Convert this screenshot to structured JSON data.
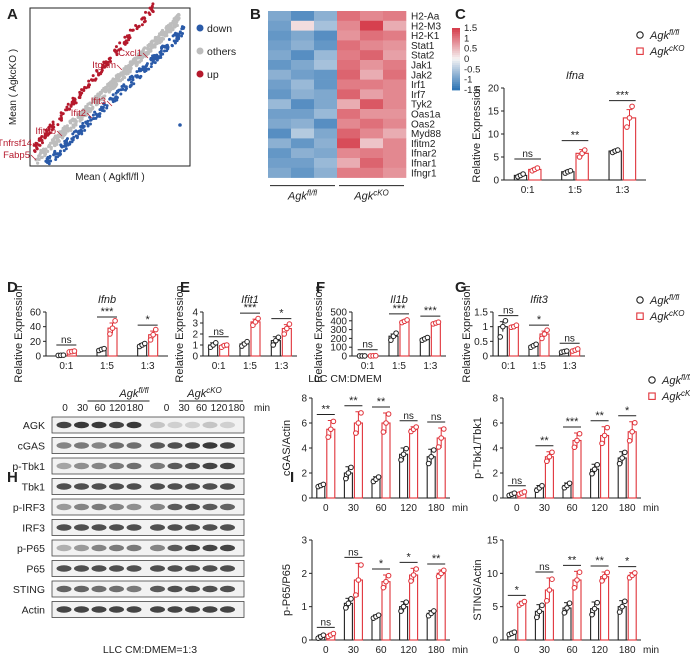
{
  "colors": {
    "black": "#222222",
    "red": "#e0333a",
    "scatter_blue": "#2a5aa8",
    "scatter_gray": "#bdbdbd",
    "scatter_red": "#b5192c",
    "heat_red": "#d6404e",
    "heat_blue": "#2f75b5"
  },
  "panel_letters": [
    "A",
    "B",
    "C",
    "D",
    "E",
    "F",
    "G",
    "H",
    "I"
  ],
  "legend": {
    "ctrl": "Agkfl/fl",
    "ctrl_base": "Agk",
    "ctrl_sup": "fl/fl",
    "ko": "AgkcKO",
    "ko_base": "Agk",
    "ko_sup": "cKO"
  },
  "x_common_label": "LLC CM:DMEM",
  "chart_data": [
    {
      "panel": "A",
      "type": "scatter",
      "xlabel": "Mean ( Agkfl/fl )",
      "ylabel": "Mean ( AgkcKO )",
      "legend": [
        "down",
        "others",
        "up"
      ],
      "genes": [
        "Cxcl1",
        "Itgam",
        "Ifit3",
        "Ifit2",
        "Ifit3b",
        "Tnfrsf14",
        "Fabp5"
      ]
    },
    {
      "panel": "B",
      "type": "heatmap",
      "genes": [
        "H2-Aa",
        "H2-M3",
        "H2-K1",
        "Stat1",
        "Stat2",
        "Jak1",
        "Jak2",
        "Irf1",
        "Irf7",
        "Tyk2",
        "Oas1a",
        "Oas2",
        "Myd88",
        "Ifitm2",
        "Ifnar2",
        "Ifnar1",
        "Ifngr1"
      ],
      "groups": [
        "Agkfl/fl",
        "AgkcKO"
      ],
      "colorbar_ticks": [
        "1.5",
        "1",
        "0.5",
        "0",
        "-0.5",
        "-1",
        "-1.5"
      ],
      "zlim": [
        -1.5,
        1.5
      ],
      "values": [
        [
          -0.9,
          -1.2,
          -0.8,
          1.1,
          0.9,
          1.0
        ],
        [
          -1.0,
          0.2,
          -0.6,
          0.9,
          1.5,
          0.6
        ],
        [
          -1.1,
          -0.9,
          -1.2,
          0.8,
          1.1,
          1.0
        ],
        [
          -1.0,
          -0.8,
          -1.1,
          1.1,
          0.9,
          0.8
        ],
        [
          -0.9,
          -1.2,
          -0.7,
          1.0,
          1.2,
          0.7
        ],
        [
          -1.1,
          -0.9,
          -0.6,
          1.1,
          0.8,
          1.0
        ],
        [
          -0.8,
          -1.0,
          -1.1,
          1.2,
          0.6,
          1.1
        ],
        [
          -1.0,
          -0.7,
          -1.1,
          1.0,
          1.0,
          0.9
        ],
        [
          -1.1,
          -0.8,
          -0.9,
          1.2,
          0.7,
          0.9
        ],
        [
          -0.7,
          -1.2,
          -0.9,
          0.6,
          1.3,
          0.9
        ],
        [
          -1.0,
          -1.0,
          -0.7,
          1.1,
          0.8,
          0.8
        ],
        [
          -0.9,
          -0.8,
          -1.2,
          0.9,
          1.1,
          0.9
        ],
        [
          -1.2,
          -0.5,
          -0.9,
          1.2,
          0.9,
          0.6
        ],
        [
          -0.8,
          -1.1,
          -0.8,
          1.4,
          0.4,
          0.9
        ],
        [
          -1.1,
          -0.8,
          -0.9,
          0.9,
          1.0,
          0.9
        ],
        [
          -1.0,
          -1.0,
          -0.7,
          0.6,
          1.2,
          0.9
        ],
        [
          -0.9,
          -1.1,
          -0.8,
          1.0,
          1.0,
          0.8
        ]
      ]
    },
    {
      "panel": "C",
      "type": "bar",
      "title": "Ifna",
      "ylabel": "Relative Expression",
      "categories": [
        "0:1",
        "1:5",
        "1:3"
      ],
      "ylim": [
        0,
        20
      ],
      "yticks": [
        0,
        5,
        10,
        15,
        20
      ],
      "series": [
        {
          "name": "Agkfl/fl",
          "values": [
            1.0,
            1.8,
            6.3
          ],
          "err": [
            0.3,
            0.3,
            0.3
          ],
          "points": [
            [
              0.7,
              1.0,
              1.3
            ],
            [
              1.5,
              1.8,
              2.0
            ],
            [
              6.0,
              6.3,
              6.5
            ]
          ]
        },
        {
          "name": "AgkcKO",
          "values": [
            2.3,
            5.8,
            13.5
          ],
          "err": [
            0.3,
            0.8,
            1.8
          ],
          "points": [
            [
              2.0,
              2.3,
              2.6
            ],
            [
              5.0,
              5.8,
              6.5
            ],
            [
              11.5,
              13.5,
              16.0
            ]
          ]
        }
      ],
      "sig": [
        "ns",
        "**",
        "***"
      ]
    },
    {
      "panel": "D",
      "type": "bar",
      "title": "Ifnb",
      "ylabel": "Relative Expression",
      "categories": [
        "0:1",
        "1:5",
        "1:3"
      ],
      "ylim": [
        0,
        60
      ],
      "yticks": [
        0,
        20,
        40,
        60
      ],
      "series": [
        {
          "name": "Agkfl/fl",
          "values": [
            1.0,
            9.0,
            15.0
          ],
          "err": [
            0.3,
            1.0,
            2.0
          ],
          "points": [
            [
              0.8,
              1.0,
              1.2
            ],
            [
              7.5,
              9.0,
              10.0
            ],
            [
              13.0,
              15.0,
              17.0
            ]
          ]
        },
        {
          "name": "AgkcKO",
          "values": [
            6.0,
            38.0,
            29.0
          ],
          "err": [
            0.8,
            7.0,
            5.0
          ],
          "points": [
            [
              5.5,
              6.0,
              6.8
            ],
            [
              30.0,
              38.0,
              48.0
            ],
            [
              22.0,
              29.0,
              36.0
            ]
          ]
        }
      ],
      "sig": [
        "ns",
        "***",
        "*"
      ]
    },
    {
      "panel": "E",
      "type": "bar",
      "title": "Ifit1",
      "ylabel": "Relative Expression",
      "categories": [
        "0:1",
        "1:5",
        "1:3"
      ],
      "ylim": [
        0,
        4
      ],
      "yticks": [
        0,
        1,
        2,
        3,
        4
      ],
      "series": [
        {
          "name": "Agkfl/fl",
          "values": [
            1.0,
            1.1,
            1.4
          ],
          "err": [
            0.2,
            0.15,
            0.35
          ],
          "points": [
            [
              0.8,
              1.0,
              1.2
            ],
            [
              0.9,
              1.1,
              1.3
            ],
            [
              1.0,
              1.4,
              1.7
            ]
          ]
        },
        {
          "name": "AgkcKO",
          "values": [
            0.95,
            3.1,
            2.5
          ],
          "err": [
            0.1,
            0.25,
            0.35
          ],
          "points": [
            [
              0.8,
              0.95,
              1.0
            ],
            [
              2.8,
              3.1,
              3.4
            ],
            [
              2.0,
              2.5,
              2.9
            ]
          ]
        }
      ],
      "sig": [
        "ns",
        "***",
        "*"
      ]
    },
    {
      "panel": "F",
      "type": "bar",
      "title": "Il1b",
      "ylabel": "Relative Expression",
      "categories": [
        "0:1",
        "1:5",
        "1:3"
      ],
      "ylim": [
        0,
        500
      ],
      "yticks": [
        0,
        100,
        200,
        300,
        400,
        500
      ],
      "series": [
        {
          "name": "Agkfl/fl",
          "values": [
            1,
            225,
            195
          ],
          "err": [
            1,
            25,
            15
          ],
          "points": [
            [
              1,
              1,
              1
            ],
            [
              180,
              225,
              260
            ],
            [
              180,
              195,
              210
            ]
          ]
        },
        {
          "name": "AgkcKO",
          "values": [
            2,
            395,
            375
          ],
          "err": [
            1,
            15,
            10
          ],
          "points": [
            [
              1,
              2,
              3
            ],
            [
              380,
              395,
              410
            ],
            [
              365,
              375,
              385
            ]
          ]
        }
      ],
      "sig": [
        "ns",
        "***",
        "***"
      ]
    },
    {
      "panel": "G",
      "type": "bar",
      "title": "Ifit3",
      "ylabel": "Relative Expression",
      "categories": [
        "0:1",
        "1:5",
        "1:3"
      ],
      "ylim": [
        0,
        1.5
      ],
      "yticks": [
        0.0,
        0.5,
        1.0,
        1.5
      ],
      "series": [
        {
          "name": "Agkfl/fl",
          "values": [
            1.0,
            0.35,
            0.15
          ],
          "err": [
            0.17,
            0.04,
            0.02
          ],
          "points": [
            [
              0.65,
              1.0,
              1.2
            ],
            [
              0.3,
              0.35,
              0.4
            ],
            [
              0.13,
              0.15,
              0.17
            ]
          ]
        },
        {
          "name": "AgkcKO",
          "values": [
            1.02,
            0.75,
            0.2
          ],
          "err": [
            0.04,
            0.1,
            0.03
          ],
          "points": [
            [
              0.98,
              1.0,
              1.05
            ],
            [
              0.6,
              0.75,
              0.88
            ],
            [
              0.17,
              0.2,
              0.24
            ]
          ]
        }
      ],
      "sig": [
        "ns",
        "*",
        "ns"
      ]
    },
    {
      "panel": "H",
      "type": "western_blot",
      "time_labels": [
        "0",
        "30",
        "60",
        "120",
        "180",
        "0",
        "30",
        "60",
        "120",
        "180"
      ],
      "time_unit": "min",
      "proteins": [
        "AGK",
        "cGAS",
        "p-Tbk1",
        "Tbk1",
        "p-IRF3",
        "IRF3",
        "p-P65",
        "P65",
        "STING",
        "Actin"
      ],
      "footer": "LLC CM:DMEM=1:3",
      "intensity": [
        [
          0.8,
          0.85,
          0.85,
          0.8,
          0.85,
          0.2,
          0.15,
          0.15,
          0.2,
          0.15
        ],
        [
          0.5,
          0.55,
          0.5,
          0.6,
          0.6,
          0.7,
          0.75,
          0.8,
          0.85,
          0.8
        ],
        [
          0.35,
          0.45,
          0.5,
          0.55,
          0.6,
          0.55,
          0.7,
          0.75,
          0.8,
          0.8
        ],
        [
          0.75,
          0.75,
          0.75,
          0.75,
          0.75,
          0.75,
          0.75,
          0.75,
          0.75,
          0.75
        ],
        [
          0.4,
          0.5,
          0.55,
          0.5,
          0.45,
          0.5,
          0.7,
          0.75,
          0.7,
          0.65
        ],
        [
          0.75,
          0.75,
          0.75,
          0.75,
          0.75,
          0.75,
          0.75,
          0.75,
          0.75,
          0.75
        ],
        [
          0.3,
          0.4,
          0.5,
          0.55,
          0.55,
          0.5,
          0.7,
          0.8,
          0.8,
          0.8
        ],
        [
          0.75,
          0.75,
          0.75,
          0.75,
          0.75,
          0.75,
          0.75,
          0.75,
          0.75,
          0.75
        ],
        [
          0.65,
          0.65,
          0.6,
          0.6,
          0.55,
          0.7,
          0.75,
          0.75,
          0.75,
          0.75
        ],
        [
          0.8,
          0.8,
          0.8,
          0.8,
          0.8,
          0.8,
          0.8,
          0.8,
          0.8,
          0.8
        ]
      ]
    },
    {
      "panel": "I1",
      "type": "bar",
      "ylabel": "cGAS/Actin",
      "categories": [
        "0",
        "30",
        "60",
        "120",
        "180"
      ],
      "unit": "min",
      "ylim": [
        0,
        8
      ],
      "yticks": [
        0,
        2,
        4,
        6,
        8
      ],
      "series": [
        {
          "name": "Agkfl/fl",
          "values": [
            1.0,
            2.0,
            1.5,
            3.5,
            3.3
          ],
          "err": [
            0.1,
            0.5,
            0.2,
            0.5,
            0.6
          ]
        },
        {
          "name": "AgkcKO",
          "values": [
            5.5,
            6.0,
            6.0,
            5.5,
            4.8
          ],
          "err": [
            0.7,
            0.9,
            0.8,
            0.2,
            0.8
          ]
        }
      ],
      "sig": [
        "**",
        "**",
        "**",
        "ns",
        "ns"
      ]
    },
    {
      "panel": "I2",
      "type": "bar",
      "ylabel": "p-Tbk1/Tbk1",
      "categories": [
        "0",
        "30",
        "60",
        "120",
        "180"
      ],
      "unit": "min",
      "ylim": [
        0,
        8
      ],
      "yticks": [
        0,
        2,
        4,
        6,
        8
      ],
      "series": [
        {
          "name": "Agkfl/fl",
          "values": [
            0.3,
            0.8,
            1.0,
            2.3,
            3.2
          ],
          "err": [
            0.1,
            0.2,
            0.2,
            0.4,
            0.5
          ]
        },
        {
          "name": "AgkcKO",
          "values": [
            0.4,
            3.3,
            4.6,
            5.0,
            5.3
          ],
          "err": [
            0.1,
            0.4,
            0.6,
            0.7,
            0.8
          ]
        }
      ],
      "sig": [
        "ns",
        "**",
        "***",
        "**",
        "*"
      ]
    },
    {
      "panel": "I3",
      "type": "bar",
      "ylabel": "p-P65/P65",
      "categories": [
        "0",
        "30",
        "60",
        "120",
        "180"
      ],
      "unit": "min",
      "ylim": [
        0,
        3
      ],
      "yticks": [
        0,
        1,
        2,
        3
      ],
      "series": [
        {
          "name": "Agkfl/fl",
          "values": [
            0.1,
            1.1,
            0.7,
            1.0,
            0.8
          ],
          "err": [
            0.05,
            0.15,
            0.05,
            0.15,
            0.08
          ]
        },
        {
          "name": "AgkcKO",
          "values": [
            0.15,
            1.8,
            1.75,
            1.95,
            2.0
          ],
          "err": [
            0.05,
            0.5,
            0.2,
            0.2,
            0.1
          ]
        }
      ],
      "sig": [
        "ns",
        "ns",
        "*",
        "*",
        "**"
      ]
    },
    {
      "panel": "I4",
      "type": "bar",
      "ylabel": "STING/Actin",
      "categories": [
        "0",
        "30",
        "60",
        "120",
        "180"
      ],
      "unit": "min",
      "ylim": [
        0,
        15
      ],
      "yticks": [
        0,
        5,
        10,
        15
      ],
      "series": [
        {
          "name": "Agkfl/fl",
          "values": [
            1.0,
            4.3,
            4.8,
            4.7,
            5.0
          ],
          "err": [
            0.2,
            1.0,
            0.8,
            1.0,
            0.9
          ]
        },
        {
          "name": "AgkcKO",
          "values": [
            5.5,
            7.5,
            9.0,
            9.5,
            9.7
          ],
          "err": [
            0.3,
            1.8,
            1.3,
            0.7,
            0.4
          ]
        }
      ],
      "sig": [
        "*",
        "ns",
        "**",
        "**",
        "*"
      ]
    }
  ]
}
